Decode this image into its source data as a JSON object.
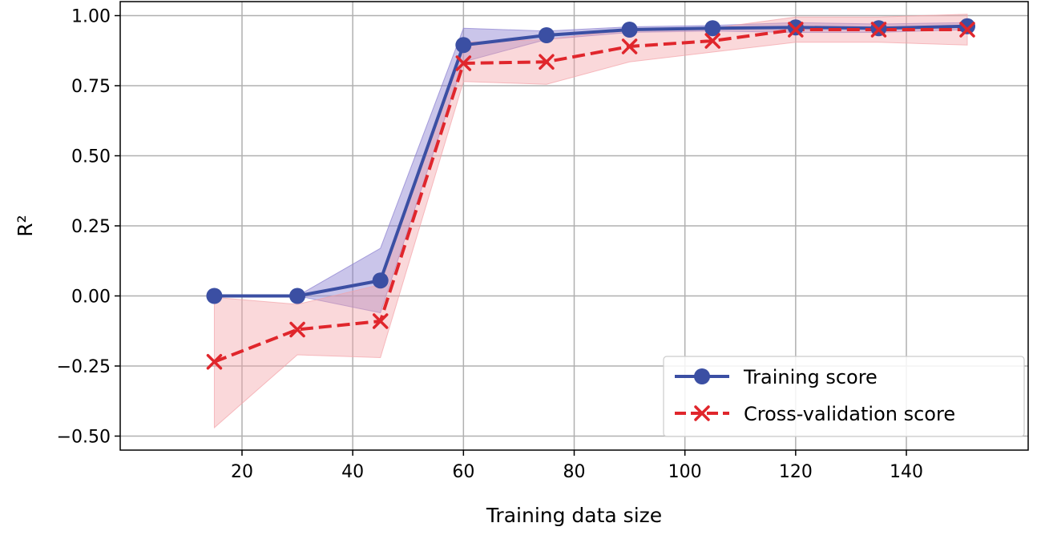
{
  "chart_data": {
    "type": "line",
    "title": "",
    "xlabel": "Training data size",
    "ylabel": "R²",
    "xlim": [
      -2,
      162
    ],
    "ylim": [
      -0.55,
      1.05
    ],
    "grid": true,
    "legend_position": "bottom-right",
    "x_ticks": [
      20,
      40,
      60,
      80,
      100,
      120,
      140
    ],
    "x_tick_labels": [
      "20",
      "40",
      "60",
      "80",
      "100",
      "120",
      "140"
    ],
    "y_ticks": [
      -0.5,
      -0.25,
      0.0,
      0.25,
      0.5,
      0.75,
      1.0
    ],
    "y_tick_labels": [
      "−0.50",
      "−0.25",
      "0.00",
      "0.25",
      "0.50",
      "0.75",
      "1.00"
    ],
    "x": [
      15,
      30,
      45,
      60,
      75,
      90,
      105,
      120,
      135,
      151
    ],
    "series": [
      {
        "name": "Training score",
        "color": "#3b4fa3",
        "fill_color": "#8a7fd0",
        "marker": "circle",
        "line_style": "solid",
        "values": [
          0.0,
          0.0,
          0.055,
          0.895,
          0.93,
          0.95,
          0.955,
          0.958,
          0.955,
          0.962
        ],
        "upper": [
          0.0,
          0.0,
          0.17,
          0.955,
          0.945,
          0.96,
          0.965,
          0.975,
          0.97,
          0.975
        ],
        "lower": [
          0.0,
          0.0,
          -0.06,
          0.835,
          0.915,
          0.94,
          0.945,
          0.94,
          0.94,
          0.95
        ]
      },
      {
        "name": "Cross-validation score",
        "color": "#e0262c",
        "fill_color": "#f4a3a8",
        "marker": "x",
        "line_style": "dashed",
        "values": [
          -0.235,
          -0.12,
          -0.09,
          0.83,
          0.835,
          0.89,
          0.91,
          0.95,
          0.95,
          0.95
        ],
        "upper": [
          -0.005,
          -0.03,
          0.04,
          0.905,
          0.915,
          0.95,
          0.955,
          0.995,
          0.995,
          1.005
        ],
        "lower": [
          -0.47,
          -0.21,
          -0.22,
          0.765,
          0.755,
          0.835,
          0.87,
          0.905,
          0.905,
          0.895
        ]
      }
    ]
  }
}
